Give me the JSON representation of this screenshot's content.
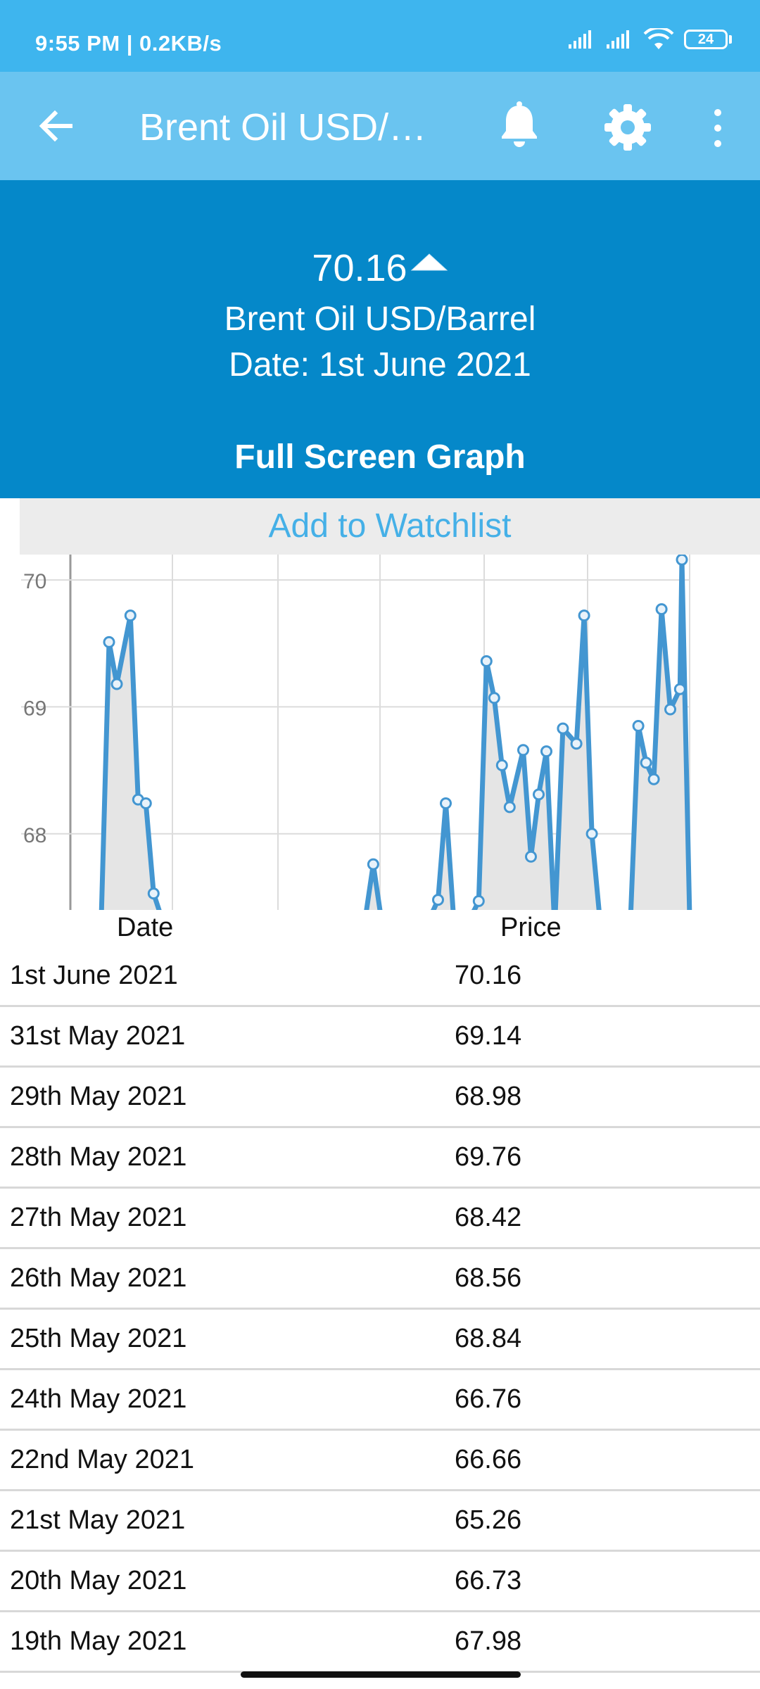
{
  "status_bar": {
    "time_speed": "9:55 PM | 0.2KB/s",
    "battery": "24"
  },
  "app_bar": {
    "title": "Brent Oil USD/B...",
    "icons": [
      "back-arrow-icon",
      "bell-icon",
      "gear-icon",
      "more-vert-icon"
    ]
  },
  "hero": {
    "price": "70.16",
    "name": "Brent Oil USD/Barrel",
    "date": "Date: 1st June 2021",
    "trend": "up",
    "full_screen_label": "Full Screen Graph"
  },
  "watchlist_label": "Add to Watchlist",
  "chart_data": {
    "type": "area",
    "x_index_range": [
      0,
      64
    ],
    "ylim": [
      67.4,
      70.2
    ],
    "yticks": [
      "68",
      "69",
      "70"
    ],
    "xlabel": "",
    "ylabel": "",
    "grid": true,
    "line_color": "#4396d1",
    "fill_color": "#e5e5e5",
    "points": [
      {
        "x": 4.0,
        "y": 69.51
      },
      {
        "x": 4.8,
        "y": 69.18
      },
      {
        "x": 6.2,
        "y": 69.72
      },
      {
        "x": 7.0,
        "y": 68.27
      },
      {
        "x": 7.8,
        "y": 68.24
      },
      {
        "x": 8.6,
        "y": 67.53
      },
      {
        "x": 31.3,
        "y": 67.76
      },
      {
        "x": 38.0,
        "y": 67.48
      },
      {
        "x": 38.8,
        "y": 68.24
      },
      {
        "x": 42.2,
        "y": 67.47
      },
      {
        "x": 43.0,
        "y": 69.36
      },
      {
        "x": 43.8,
        "y": 69.07
      },
      {
        "x": 44.6,
        "y": 68.54
      },
      {
        "x": 45.4,
        "y": 68.21
      },
      {
        "x": 46.8,
        "y": 68.66
      },
      {
        "x": 47.6,
        "y": 67.82
      },
      {
        "x": 48.4,
        "y": 68.31
      },
      {
        "x": 49.2,
        "y": 68.65
      },
      {
        "x": 50.9,
        "y": 68.83
      },
      {
        "x": 52.3,
        "y": 68.71
      },
      {
        "x": 53.1,
        "y": 69.72
      },
      {
        "x": 53.9,
        "y": 68.0
      },
      {
        "x": 58.7,
        "y": 68.85
      },
      {
        "x": 59.5,
        "y": 68.56
      },
      {
        "x": 60.3,
        "y": 68.43
      },
      {
        "x": 61.1,
        "y": 69.77
      },
      {
        "x": 62.0,
        "y": 68.98
      },
      {
        "x": 63.0,
        "y": 69.14
      },
      {
        "x": 63.2,
        "y": 70.16
      }
    ],
    "segments": [
      [
        0,
        5
      ],
      [
        6,
        6
      ],
      [
        7,
        8
      ],
      [
        9,
        17
      ],
      [
        18,
        21
      ],
      [
        22,
        28
      ]
    ]
  },
  "table": {
    "headers": {
      "date": "Date",
      "price": "Price"
    },
    "rows": [
      {
        "date": "1st June 2021",
        "price": "70.16"
      },
      {
        "date": "31st May 2021",
        "price": "69.14"
      },
      {
        "date": "29th May 2021",
        "price": "68.98"
      },
      {
        "date": "28th May 2021",
        "price": "69.76"
      },
      {
        "date": "27th May 2021",
        "price": "68.42"
      },
      {
        "date": "26th May 2021",
        "price": "68.56"
      },
      {
        "date": "25th May 2021",
        "price": "68.84"
      },
      {
        "date": "24th May 2021",
        "price": "66.76"
      },
      {
        "date": "22nd May 2021",
        "price": "66.66"
      },
      {
        "date": "21st May 2021",
        "price": "65.26"
      },
      {
        "date": "20th May 2021",
        "price": "66.73"
      },
      {
        "date": "19th May 2021",
        "price": "67.98"
      }
    ]
  }
}
